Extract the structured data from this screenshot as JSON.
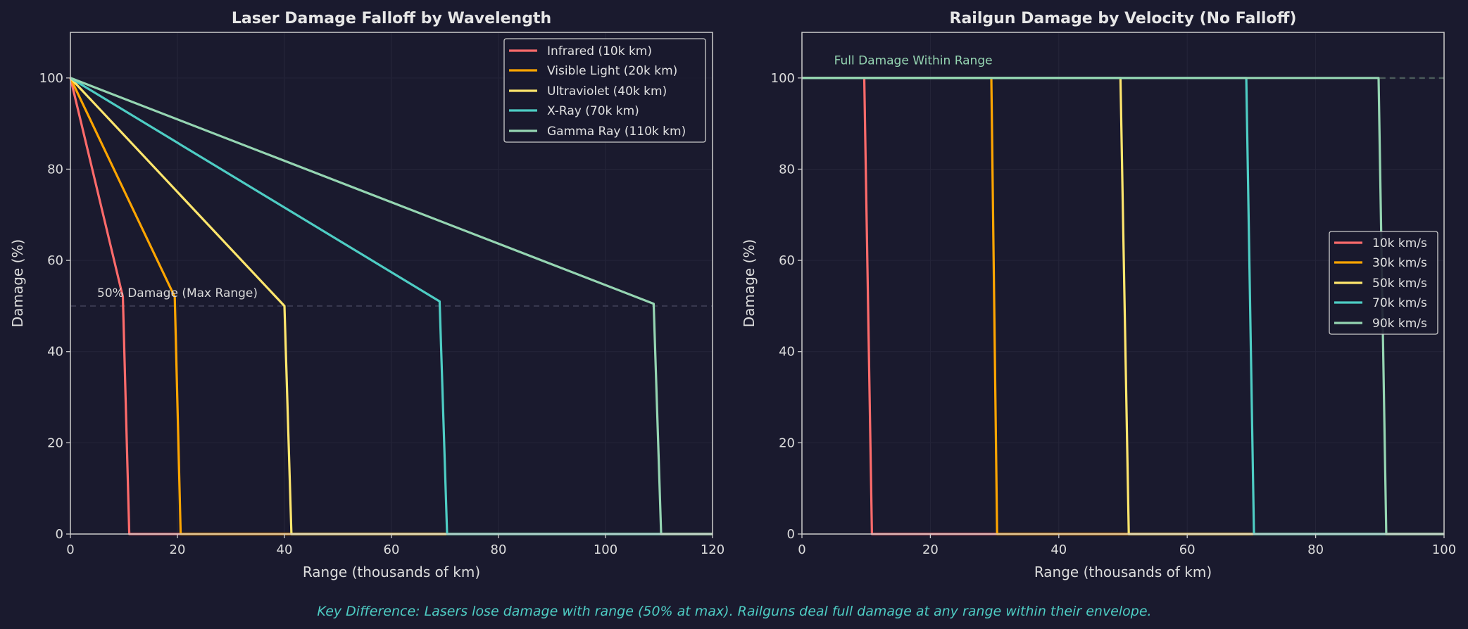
{
  "background": "#1a1a2e",
  "footer": "Key Difference: Lasers lose damage with range (50% at max). Railguns deal full damage at any range within their envelope.",
  "footer_color": "#4ecdc4",
  "chart_data": [
    {
      "type": "line",
      "title": "Laser Damage Falloff by Wavelength",
      "xlabel": "Range (thousands of km)",
      "ylabel": "Damage (%)",
      "xlim": [
        0,
        120
      ],
      "ylim": [
        0,
        110
      ],
      "xticks": [
        0,
        20,
        40,
        60,
        80,
        100,
        120
      ],
      "yticks": [
        0,
        20,
        40,
        60,
        80,
        100
      ],
      "grid": true,
      "legend_position": "top-right",
      "reference_line": {
        "y": 50,
        "style": "dashed",
        "color": "#3a3a50"
      },
      "annotation": {
        "text": "50% Damage (Max Range)",
        "x": 5,
        "y": 52,
        "color": "#d8d8d8"
      },
      "series": [
        {
          "name": "Infrared (10k km)",
          "color": "#ff6b6b",
          "points": [
            [
              0,
              100
            ],
            [
              9.8,
              52
            ],
            [
              11,
              0
            ],
            [
              120,
              0
            ]
          ]
        },
        {
          "name": "Visible Light (20k km)",
          "color": "#ffa500",
          "points": [
            [
              0,
              100
            ],
            [
              19.5,
              52
            ],
            [
              20.6,
              0
            ],
            [
              120,
              0
            ]
          ]
        },
        {
          "name": "Ultraviolet (40k km)",
          "color": "#ffe66d",
          "points": [
            [
              0,
              100
            ],
            [
              40,
              50
            ],
            [
              41.3,
              0
            ],
            [
              120,
              0
            ]
          ]
        },
        {
          "name": "X-Ray (70k km)",
          "color": "#4ecdc4",
          "points": [
            [
              0,
              100
            ],
            [
              69,
              51
            ],
            [
              70.4,
              0
            ],
            [
              120,
              0
            ]
          ]
        },
        {
          "name": "Gamma Ray (110k km)",
          "color": "#95d5b2",
          "points": [
            [
              0,
              100
            ],
            [
              109,
              50.5
            ],
            [
              110.4,
              0
            ],
            [
              120,
              0
            ]
          ]
        }
      ]
    },
    {
      "type": "line",
      "title": "Railgun Damage by Velocity (No Falloff)",
      "xlabel": "Range (thousands of km)",
      "ylabel": "Damage (%)",
      "xlim": [
        0,
        100
      ],
      "ylim": [
        0,
        110
      ],
      "xticks": [
        0,
        20,
        40,
        60,
        80,
        100
      ],
      "yticks": [
        0,
        20,
        40,
        60,
        80,
        100
      ],
      "grid": true,
      "legend_position": "center-right",
      "reference_line": {
        "y": 100,
        "style": "dashed",
        "color": "#4a5a5a"
      },
      "annotation": {
        "text": "Full Damage Within Range",
        "x": 5,
        "y": 103,
        "color": "#95d5b2"
      },
      "series": [
        {
          "name": "10k km/s",
          "color": "#ff6b6b",
          "points": [
            [
              0,
              100
            ],
            [
              9.7,
              100
            ],
            [
              10.9,
              0
            ],
            [
              100,
              0
            ]
          ]
        },
        {
          "name": "30k km/s",
          "color": "#ffa500",
          "points": [
            [
              0,
              100
            ],
            [
              29.5,
              100
            ],
            [
              30.4,
              0
            ],
            [
              100,
              0
            ]
          ]
        },
        {
          "name": "50k km/s",
          "color": "#ffe66d",
          "points": [
            [
              0,
              100
            ],
            [
              49.6,
              100
            ],
            [
              50.9,
              0
            ],
            [
              100,
              0
            ]
          ]
        },
        {
          "name": "70k km/s",
          "color": "#4ecdc4",
          "points": [
            [
              0,
              100
            ],
            [
              69.2,
              100
            ],
            [
              70.4,
              0
            ],
            [
              100,
              0
            ]
          ]
        },
        {
          "name": "90k km/s",
          "color": "#95d5b2",
          "points": [
            [
              0,
              100
            ],
            [
              89.8,
              100
            ],
            [
              91,
              0
            ],
            [
              100,
              0
            ]
          ]
        }
      ]
    }
  ]
}
